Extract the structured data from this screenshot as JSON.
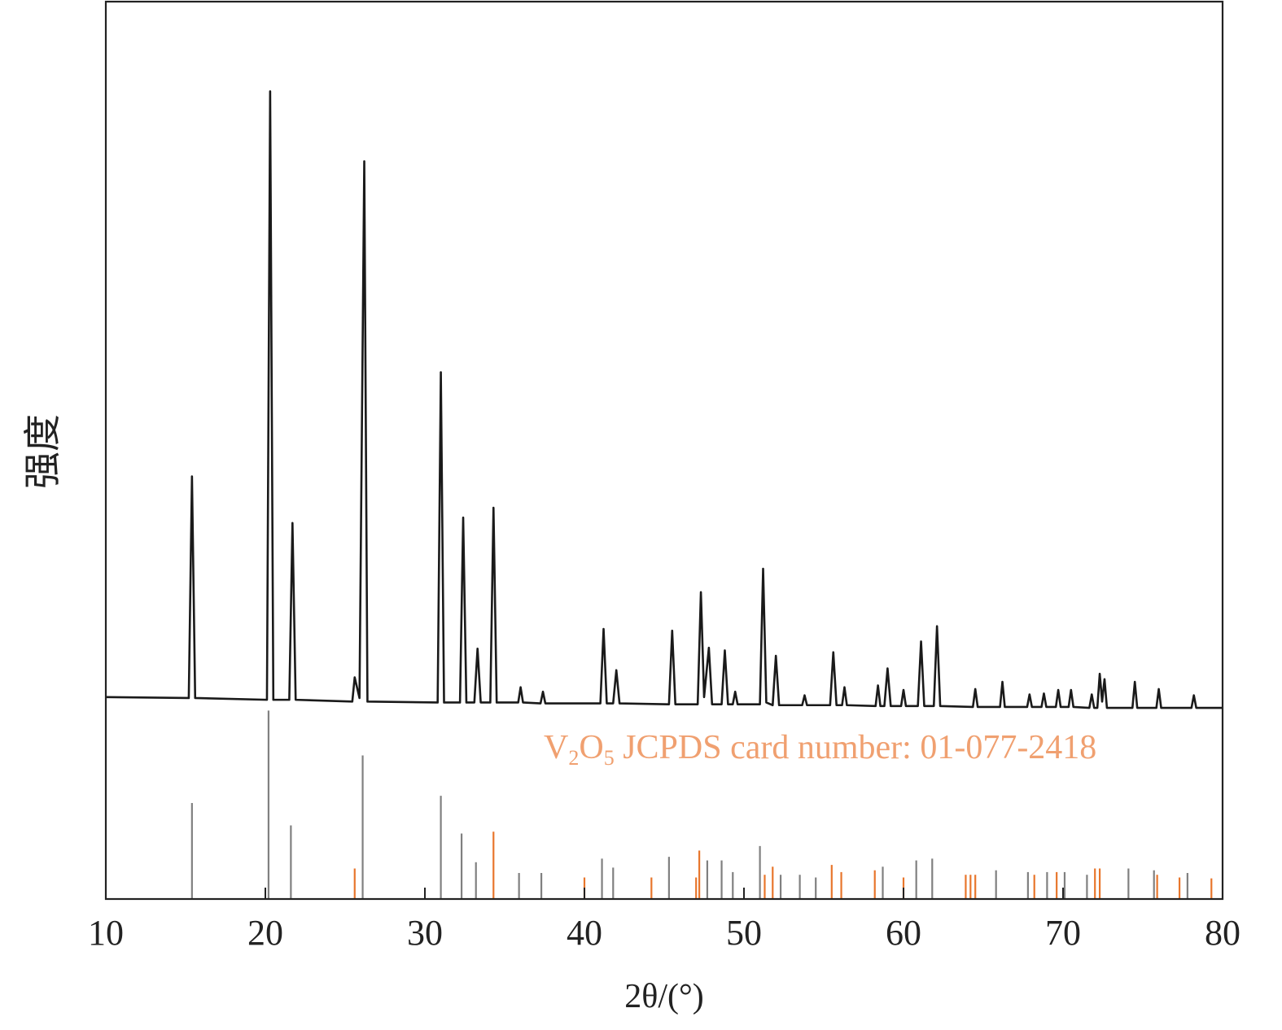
{
  "chart_data": {
    "type": "line",
    "xlabel": "2θ/(°)",
    "ylabel": "强度",
    "annotation": [
      "V",
      "2",
      "O",
      "5",
      " JCPDS card number: 01-077-2418"
    ],
    "annotation_color": "#f0a070",
    "xlim": [
      10,
      80
    ],
    "xticks": [
      10,
      20,
      30,
      40,
      50,
      60,
      70,
      80
    ],
    "ylim": [
      0,
      100
    ],
    "series": [
      {
        "type": "line",
        "color": "#1a1a1a",
        "x": [
          10,
          15.2,
          15.4,
          15.6,
          20.1,
          20.3,
          20.5,
          21.5,
          21.7,
          21.9,
          25.45,
          25.6,
          25.9,
          26.2,
          26.4,
          30.8,
          31.0,
          31.2,
          32.2,
          32.4,
          32.6,
          33.1,
          33.3,
          33.5,
          34.1,
          34.3,
          34.5,
          35.85,
          36.0,
          36.15,
          37.25,
          37.4,
          37.55,
          41.0,
          41.2,
          41.4,
          41.8,
          42.0,
          42.2,
          45.3,
          45.5,
          45.7,
          47.1,
          47.3,
          47.5,
          47.8,
          48.0,
          48.6,
          48.8,
          49.0,
          49.3,
          49.45,
          49.6,
          51.0,
          51.2,
          51.4,
          51.8,
          52.0,
          52.2,
          53.65,
          53.8,
          53.95,
          55.4,
          55.6,
          55.8,
          56.15,
          56.3,
          56.45,
          58.25,
          58.4,
          58.55,
          58.8,
          59.0,
          59.2,
          59.85,
          60.0,
          60.15,
          60.9,
          61.1,
          61.3,
          61.9,
          62.1,
          62.3,
          64.35,
          64.5,
          64.65,
          66.05,
          66.2,
          66.35,
          67.75,
          67.9,
          68.05,
          68.65,
          68.8,
          68.95,
          69.55,
          69.7,
          69.85,
          70.35,
          70.5,
          70.65,
          71.65,
          71.8,
          71.95,
          72.15,
          72.3,
          72.45,
          72.6,
          72.75,
          74.35,
          74.5,
          74.65,
          75.85,
          76.0,
          76.15,
          78.05,
          78.2,
          78.35,
          80
        ],
        "values": [
          22.5,
          22.4,
          47.1,
          22.4,
          22.2,
          90.0,
          22.2,
          22.2,
          41.9,
          22.2,
          22.0,
          24.7,
          22.4,
          82.2,
          22.0,
          21.9,
          58.7,
          21.9,
          21.9,
          42.5,
          21.9,
          21.9,
          27.9,
          21.9,
          21.9,
          43.6,
          21.9,
          21.9,
          23.6,
          21.9,
          21.8,
          23.1,
          21.8,
          21.8,
          30.1,
          21.8,
          21.8,
          25.5,
          21.8,
          21.7,
          29.9,
          21.7,
          21.7,
          34.2,
          22.5,
          28.0,
          21.7,
          21.7,
          27.7,
          21.7,
          21.7,
          23.1,
          21.7,
          21.7,
          36.8,
          21.9,
          21.6,
          27.1,
          21.6,
          21.6,
          22.7,
          21.6,
          21.6,
          27.5,
          21.6,
          21.6,
          23.6,
          21.6,
          21.5,
          23.8,
          21.5,
          21.5,
          25.7,
          21.5,
          21.5,
          23.3,
          21.5,
          21.5,
          28.7,
          21.5,
          21.5,
          30.4,
          21.5,
          21.4,
          23.4,
          21.4,
          21.4,
          24.2,
          21.4,
          21.4,
          22.8,
          21.4,
          21.4,
          22.9,
          21.4,
          21.4,
          23.3,
          21.4,
          21.4,
          23.3,
          21.4,
          21.3,
          22.8,
          21.3,
          21.3,
          25.1,
          22.0,
          24.5,
          21.3,
          21.3,
          24.2,
          21.3,
          21.3,
          23.4,
          21.3,
          21.3,
          22.7,
          21.3,
          21.3
        ]
      },
      {
        "type": "stick",
        "color": "#808080",
        "x": [
          15.4,
          20.2,
          21.6,
          26.1,
          31.0,
          32.3,
          33.2,
          35.9,
          37.3,
          41.1,
          41.8,
          45.3,
          47.7,
          48.6,
          49.3,
          51.0,
          52.3,
          53.5,
          54.5,
          58.7,
          60.8,
          61.8,
          65.8,
          67.8,
          69.0,
          70.1,
          71.5,
          74.1,
          75.7,
          77.8
        ],
        "values": [
          10.7,
          21.0,
          8.2,
          16.0,
          11.5,
          7.3,
          4.1,
          2.9,
          2.9,
          4.5,
          3.5,
          4.7,
          4.3,
          4.3,
          3.0,
          5.9,
          2.7,
          2.7,
          2.4,
          3.6,
          4.3,
          4.5,
          3.2,
          3.0,
          3.0,
          3.0,
          2.7,
          3.4,
          3.2,
          2.9
        ]
      },
      {
        "type": "stick",
        "color": "#e8762c",
        "x": [
          25.6,
          34.3,
          40.0,
          44.2,
          47.0,
          47.2,
          51.3,
          51.8,
          55.5,
          56.1,
          58.2,
          60.0,
          63.9,
          64.2,
          64.5,
          68.2,
          69.6,
          72.0,
          72.3,
          75.9,
          77.3,
          79.3
        ],
        "values": [
          3.4,
          7.5,
          2.4,
          2.4,
          2.4,
          5.4,
          2.7,
          3.6,
          3.8,
          3.0,
          3.2,
          2.4,
          2.7,
          2.7,
          2.7,
          2.7,
          3.0,
          3.4,
          3.4,
          2.7,
          2.4,
          2.3
        ]
      }
    ]
  }
}
